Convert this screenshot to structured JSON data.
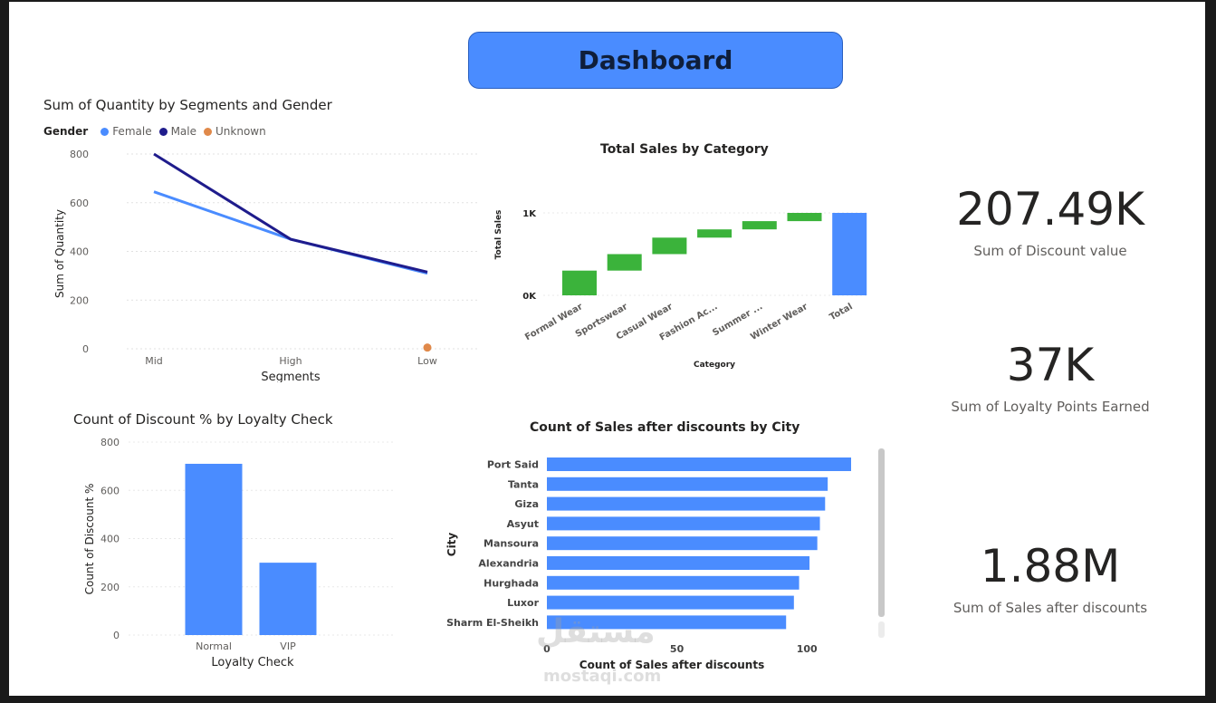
{
  "header": {
    "title": "Dashboard"
  },
  "kpis": [
    {
      "value": "207.49K",
      "label": "Sum of Discount value"
    },
    {
      "value": "37K",
      "label": "Sum of Loyalty Points Earned"
    },
    {
      "value": "1.88M",
      "label": "Sum of Sales after discounts"
    }
  ],
  "colors": {
    "blue": "#4a8cff",
    "navy": "#1f1c8c",
    "orange": "#e0894a",
    "green": "#3bb33b",
    "title_bg": "#4a8cff"
  },
  "watermark": {
    "arabic": "مستقل",
    "latin": "mostaqi.com"
  },
  "chart_data": [
    {
      "id": "line",
      "type": "line",
      "title": "Sum of Quantity by Segments and Gender",
      "xlabel": "Segments",
      "ylabel": "Sum of Quantity",
      "legend_title": "Gender",
      "legend_placement": "top-left",
      "categories": [
        "Mid",
        "High",
        "Low"
      ],
      "yticks": [
        "0",
        "200",
        "400",
        "600",
        "800"
      ],
      "ylim": [
        0,
        800
      ],
      "grid": true,
      "series": [
        {
          "name": "Female",
          "color": "#4a8cff",
          "values": [
            645,
            450,
            310
          ]
        },
        {
          "name": "Male",
          "color": "#1f1c8c",
          "values": [
            800,
            450,
            315
          ]
        },
        {
          "name": "Unknown",
          "color": "#e0894a",
          "values": [
            null,
            null,
            5
          ]
        }
      ]
    },
    {
      "id": "waterfall",
      "type": "bar",
      "subtype": "waterfall",
      "title": "Total Sales by Category",
      "xlabel": "Category",
      "ylabel": "Total Sales",
      "categories": [
        "Formal Wear",
        "Sportswear",
        "Casual Wear",
        "Fashion Ac...",
        "Summer ...",
        "Winter Wear",
        "Total"
      ],
      "values": [
        300,
        200,
        200,
        100,
        100,
        100,
        1000
      ],
      "yticks": [
        "0K",
        "1K"
      ],
      "ylim": [
        0,
        1000
      ],
      "grid": true
    },
    {
      "id": "loyalty",
      "type": "bar",
      "title": "Count of Discount % by Loyalty Check",
      "xlabel": "Loyalty Check",
      "ylabel": "Count of Discount %",
      "categories": [
        "Normal",
        "VIP"
      ],
      "values": [
        710,
        300
      ],
      "yticks": [
        "0",
        "200",
        "400",
        "600",
        "800"
      ],
      "ylim": [
        0,
        800
      ],
      "grid": true
    },
    {
      "id": "city",
      "type": "bar",
      "orientation": "horizontal",
      "title": "Count of Sales after discounts by City",
      "xlabel": "Count of Sales after discounts",
      "ylabel": "City",
      "categories": [
        "Port Said",
        "Tanta",
        "Giza",
        "Asyut",
        "Mansoura",
        "Alexandria",
        "Hurghada",
        "Luxor",
        "Sharm El-Sheikh"
      ],
      "values": [
        117,
        108,
        107,
        105,
        104,
        101,
        97,
        95,
        92
      ],
      "xticks": [
        "0",
        "50",
        "100"
      ],
      "xlim": [
        0,
        117
      ],
      "grid": false
    }
  ]
}
